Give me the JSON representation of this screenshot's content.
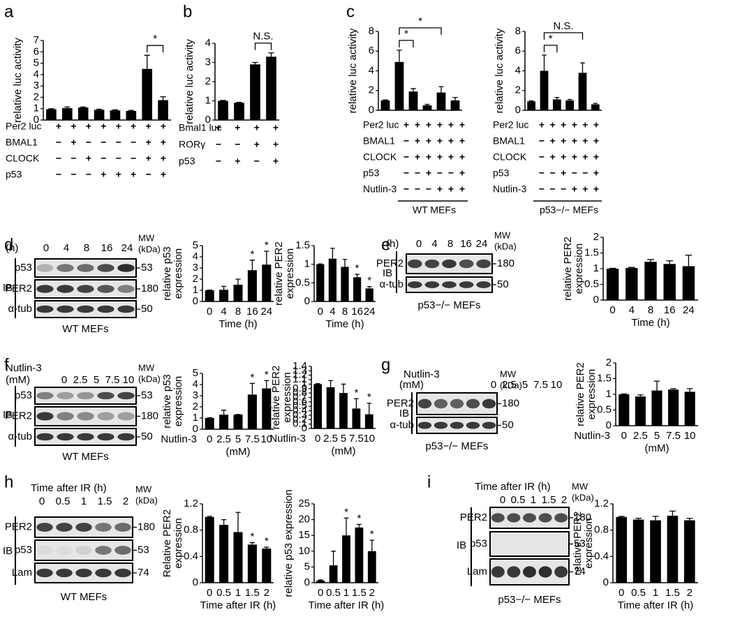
{
  "panel_labels": [
    "a",
    "b",
    "c",
    "d",
    "e",
    "f",
    "g",
    "h",
    "i"
  ],
  "chart_data": [
    {
      "type": "bar",
      "ylabel": "relative luc activity",
      "ylim": [
        0,
        7
      ],
      "yticks": [
        0,
        1,
        2,
        3,
        4,
        5,
        6,
        7
      ],
      "color": "#000000",
      "values": [
        0.95,
        1.05,
        1.1,
        0.9,
        0.85,
        0.8,
        4.5,
        1.75
      ],
      "errors": [
        0.05,
        0.1,
        0.05,
        0.05,
        0.05,
        0.05,
        1.2,
        0.3
      ],
      "conditions": [
        {
          "label": "Per2 luc",
          "signs": [
            "+",
            "+",
            "+",
            "+",
            "+",
            "+",
            "+",
            "+"
          ]
        },
        {
          "label": "BMAL1",
          "signs": [
            "−",
            "+",
            "−",
            "−",
            "−",
            "−",
            "+",
            "+"
          ]
        },
        {
          "label": "CLOCK",
          "signs": [
            "−",
            "−",
            "+",
            "−",
            "−",
            "−",
            "+",
            "+"
          ]
        },
        {
          "label": "p53",
          "signs": [
            "−",
            "−",
            "−",
            "+",
            "+",
            "+",
            "−",
            "+"
          ]
        }
      ],
      "brackets": [
        {
          "bars": [
            6,
            7
          ],
          "label": "*"
        }
      ]
    },
    {
      "type": "bar",
      "ylabel": "relative luc activity",
      "ylim": [
        0,
        4
      ],
      "yticks": [
        0,
        1,
        2,
        3,
        4
      ],
      "color": "#000000",
      "values": [
        1.0,
        0.9,
        2.9,
        3.3
      ],
      "errors": [
        0.02,
        0.02,
        0.1,
        0.2
      ],
      "conditions": [
        {
          "label": "Bmal1 luc",
          "signs": [
            "+",
            "+",
            "+",
            "+"
          ]
        },
        {
          "label": "RORγ",
          "signs": [
            "−",
            "−",
            "+",
            "+"
          ]
        },
        {
          "label": "p53",
          "signs": [
            "−",
            "+",
            "−",
            "+"
          ]
        }
      ],
      "brackets": [
        {
          "bars": [
            2,
            3
          ],
          "label": "N.S."
        }
      ]
    },
    {
      "type": "bar",
      "ylabel": "relative luc activity",
      "ylim": [
        0,
        8
      ],
      "yticks": [
        0,
        2,
        4,
        6,
        8
      ],
      "color": "#000000",
      "values": [
        1.0,
        4.9,
        1.9,
        0.5,
        1.8,
        1.0
      ],
      "errors": [
        0.05,
        1.2,
        0.3,
        0.1,
        0.6,
        0.3
      ],
      "conditions": [
        {
          "label": "Per2 luc",
          "signs": [
            "+",
            "+",
            "+",
            "+",
            "+",
            "+"
          ]
        },
        {
          "label": "BMAL1",
          "signs": [
            "−",
            "+",
            "+",
            "+",
            "+",
            "+"
          ]
        },
        {
          "label": "CLOCK",
          "signs": [
            "−",
            "+",
            "+",
            "+",
            "+",
            "+"
          ]
        },
        {
          "label": "p53",
          "signs": [
            "−",
            "−",
            "+",
            "−",
            "−",
            "+"
          ]
        },
        {
          "label": "Nutlin-3",
          "signs": [
            "−",
            "−",
            "−",
            "+",
            "+",
            "+"
          ]
        }
      ],
      "group_label": "WT MEFs",
      "brackets": [
        {
          "bars": [
            1,
            2
          ],
          "label": "*"
        },
        {
          "bars": [
            1,
            4
          ],
          "label": "*"
        }
      ]
    },
    {
      "type": "bar",
      "ylabel": "relative luc activity",
      "ylim": [
        0,
        8
      ],
      "yticks": [
        0,
        2,
        4,
        6,
        8
      ],
      "color": "#000000",
      "values": [
        0.9,
        4.0,
        1.1,
        1.0,
        3.8,
        0.6
      ],
      "errors": [
        0.05,
        1.6,
        0.2,
        0.1,
        1.0,
        0.1
      ],
      "conditions": [
        {
          "label": "Per2 luc",
          "signs": [
            "+",
            "+",
            "+",
            "+",
            "+",
            "+"
          ]
        },
        {
          "label": "BMAL1",
          "signs": [
            "−",
            "+",
            "+",
            "+",
            "+",
            "+"
          ]
        },
        {
          "label": "CLOCK",
          "signs": [
            "−",
            "+",
            "+",
            "+",
            "+",
            "+"
          ]
        },
        {
          "label": "p53",
          "signs": [
            "−",
            "−",
            "+",
            "−",
            "−",
            "+"
          ]
        },
        {
          "label": "Nutlin-3",
          "signs": [
            "−",
            "−",
            "−",
            "+",
            "+",
            "+"
          ]
        }
      ],
      "group_label": "p53−/− MEFs",
      "brackets": [
        {
          "bars": [
            1,
            2
          ],
          "label": "*"
        },
        {
          "bars": [
            1,
            4
          ],
          "label": "N.S."
        }
      ]
    },
    {
      "type": "bar",
      "ylabel": [
        "relative p53",
        "expression"
      ],
      "xlabel": "Time (h)",
      "ylim": [
        0,
        5
      ],
      "yticks": [
        0,
        1,
        2,
        3,
        4,
        5
      ],
      "color": "#000000",
      "categories": [
        "0",
        "4",
        "8",
        "16",
        "24"
      ],
      "values": [
        1.0,
        1.05,
        1.5,
        2.8,
        3.3
      ],
      "errors": [
        0.02,
        0.3,
        0.5,
        0.9,
        1.2
      ],
      "bar_labels": [
        null,
        null,
        null,
        "*",
        "*"
      ]
    },
    {
      "type": "bar",
      "ylabel": [
        "relative PER2",
        "expression"
      ],
      "xlabel": "Time (h)",
      "ylim": [
        0,
        1.5
      ],
      "yticks": [
        0,
        0.5,
        1,
        1.5
      ],
      "color": "#000000",
      "categories": [
        "0",
        "4",
        "8",
        "16",
        "24"
      ],
      "values": [
        1.0,
        1.15,
        0.93,
        0.65,
        0.35
      ],
      "errors": [
        0.01,
        0.28,
        0.2,
        0.08,
        0.05
      ],
      "bar_labels": [
        null,
        null,
        null,
        "*",
        "*"
      ]
    },
    {
      "type": "bar",
      "ylabel": [
        "relative PER2",
        "expression"
      ],
      "xlabel": "Time (h)",
      "ylim": [
        0,
        2
      ],
      "yticks": [
        0,
        0.5,
        1,
        1.5,
        2
      ],
      "color": "#000000",
      "categories": [
        "0",
        "4",
        "8",
        "16",
        "24"
      ],
      "values": [
        1.0,
        1.02,
        1.22,
        1.15,
        1.08
      ],
      "errors": [
        0.01,
        0.02,
        0.07,
        0.1,
        0.35
      ]
    },
    {
      "type": "bar",
      "ylabel": [
        "relative p53",
        "expression"
      ],
      "xlabel_left": "Nutlin-3",
      "xlabel": "(mM)",
      "ylim": [
        0,
        5
      ],
      "yticks": [
        0,
        1,
        2,
        3,
        4,
        5
      ],
      "color": "#000000",
      "categories": [
        "0",
        "2.5",
        "5",
        "7.5",
        "10"
      ],
      "values": [
        1.0,
        1.3,
        1.3,
        3.1,
        3.65
      ],
      "errors": [
        0.02,
        0.4,
        0.02,
        1.0,
        0.7
      ],
      "bar_labels": [
        null,
        null,
        null,
        "*",
        "*"
      ]
    },
    {
      "type": "bar",
      "ylabel": [
        "relative PER2",
        "expression"
      ],
      "xlabel_left": "Nutlin-3",
      "xlabel": "(mM)",
      "ylim": [
        0,
        1.4
      ],
      "yticks": [
        0,
        0.1,
        0.2,
        0.3,
        0.4,
        0.5,
        0.6,
        0.7,
        0.8,
        0.9,
        1,
        1.1,
        1.2,
        1.3,
        1.4
      ],
      "color": "#000000",
      "categories": [
        "0",
        "2.5",
        "5",
        "7.5",
        "10"
      ],
      "values": [
        1.0,
        0.93,
        0.8,
        0.45,
        0.32
      ],
      "errors": [
        0.01,
        0.15,
        0.2,
        0.22,
        0.25
      ],
      "bar_labels": [
        null,
        null,
        null,
        "*",
        "*"
      ]
    },
    {
      "type": "bar",
      "ylabel": [
        "relative PER2",
        "expression"
      ],
      "xlabel_left": "Nutlin-3",
      "xlabel": "(mM)",
      "ylim": [
        0,
        2
      ],
      "yticks": [
        0,
        0.5,
        1,
        1.5,
        2
      ],
      "color": "#000000",
      "categories": [
        "0",
        "2.5",
        "5",
        "7.5",
        "10"
      ],
      "values": [
        1.0,
        0.93,
        1.12,
        1.15,
        1.08
      ],
      "errors": [
        0.01,
        0.05,
        0.3,
        0.03,
        0.1
      ]
    },
    {
      "type": "bar",
      "ylabel": [
        "Relative PER2",
        "expression"
      ],
      "xlabel": "Time after IR (h)",
      "ylim": [
        0,
        1.2
      ],
      "yticks": [
        0,
        0.4,
        0.8,
        1.2
      ],
      "color": "#000000",
      "categories": [
        "0",
        "0.5",
        "1",
        "1.5",
        "2"
      ],
      "values": [
        1.0,
        0.88,
        0.77,
        0.58,
        0.52
      ],
      "errors": [
        0.01,
        0.08,
        0.3,
        0.03,
        0.02
      ],
      "bar_labels": [
        null,
        null,
        null,
        "*",
        "*"
      ]
    },
    {
      "type": "bar",
      "ylabel": "relative p53 expression",
      "xlabel": "Time after IR (h)",
      "ylim": [
        0,
        25
      ],
      "yticks": [
        0,
        5,
        10,
        15,
        20,
        25
      ],
      "color": "#000000",
      "categories": [
        "0",
        "0.5",
        "1",
        "1.5",
        "2"
      ],
      "values": [
        0.7,
        5.5,
        15,
        17.5,
        10
      ],
      "errors": [
        0.2,
        4.5,
        5.5,
        1,
        3.5
      ],
      "bar_labels": [
        null,
        null,
        "*",
        "*",
        "*"
      ]
    },
    {
      "type": "bar",
      "ylabel": [
        "relative PER2",
        "expression"
      ],
      "xlabel": "Time after IR (h)",
      "ylim": [
        0,
        1.2
      ],
      "yticks": [
        0,
        0.4,
        0.8,
        1.2
      ],
      "color": "#000000",
      "categories": [
        "0",
        "0.5",
        "1",
        "1.5",
        "2"
      ],
      "values": [
        1.0,
        0.96,
        0.95,
        1.02,
        0.95
      ],
      "errors": [
        0.01,
        0.02,
        0.06,
        0.07,
        0.03
      ]
    }
  ],
  "blots": [
    {
      "header": [
        "(h)"
      ],
      "lanes": [
        "0",
        "4",
        "8",
        "16",
        "24"
      ],
      "mw_header": [
        "MW",
        "(kDa)"
      ],
      "rows": [
        {
          "label": "p53",
          "mw": 53
        },
        {
          "label": "PER2",
          "mw": 180
        },
        {
          "label": "α-tub",
          "mw": 50
        }
      ],
      "ib": "IB",
      "caption": "WT MEFs"
    },
    {
      "header": [
        "(h)"
      ],
      "lanes": [
        "0",
        "4",
        "8",
        "16",
        "24"
      ],
      "mw_header": [
        "MW",
        "(kDa)"
      ],
      "rows": [
        {
          "label": "PER2",
          "mw": 180
        },
        {
          "label": "α-tub",
          "mw": 50
        }
      ],
      "ib": "IB",
      "caption": "p53−/− MEFs"
    },
    {
      "header": [
        "Nutlin-3",
        "(mM)"
      ],
      "lanes": [
        "0",
        "2.5",
        "5",
        "7.5",
        "10"
      ],
      "mw_header": [
        "MW",
        "(kDa)"
      ],
      "rows": [
        {
          "label": "p53",
          "mw": 53
        },
        {
          "label": "PER2",
          "mw": 180
        },
        {
          "label": "α-tub",
          "mw": 50
        }
      ],
      "ib": "IB",
      "caption": "WT MEFs"
    },
    {
      "header": [
        "Nutlin-3",
        "(mM)"
      ],
      "lanes": [
        "0",
        "2.5",
        "5",
        "7.5",
        "10"
      ],
      "mw_header": [
        "MW",
        "(kDa)"
      ],
      "rows": [
        {
          "label": "PER2",
          "mw": 180
        },
        {
          "label": "α-tub",
          "mw": 50
        }
      ],
      "ib": "IB",
      "caption": "p53−/− MEFs"
    },
    {
      "header": [
        "Time after IR (h)"
      ],
      "lanes": [
        "0",
        "0.5",
        "1",
        "1.5",
        "2"
      ],
      "mw_header": [
        "MW",
        "(kDa)"
      ],
      "rows": [
        {
          "label": "PER2",
          "mw": 180
        },
        {
          "label": "p53",
          "mw": 53
        },
        {
          "label": "Lam",
          "mw": 74
        }
      ],
      "ib": "IB",
      "caption": "WT MEFs"
    },
    {
      "header": [
        "Time after IR (h)"
      ],
      "lanes": [
        "0",
        "0.5",
        "1",
        "1.5",
        "2"
      ],
      "mw_header": [
        "MW",
        "(kDa)"
      ],
      "rows": [
        {
          "label": "PER2",
          "mw": 180
        },
        {
          "label": "p53",
          "mw": 53
        },
        {
          "label": "Lam",
          "mw": 74
        }
      ],
      "ib": "IB",
      "caption": "p53−/− MEFs"
    }
  ]
}
